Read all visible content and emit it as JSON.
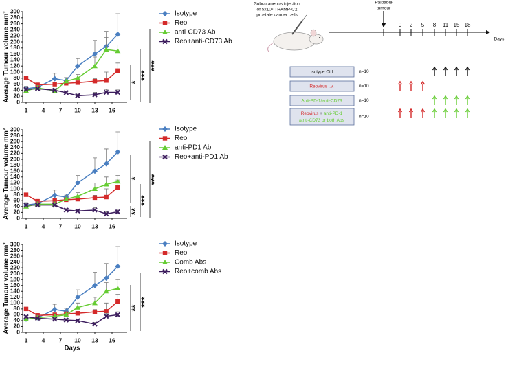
{
  "chart_data": [
    {
      "type": "line",
      "y_label": "Average Tumour volume mm³",
      "x": [
        1,
        3,
        6,
        8,
        10,
        13,
        15,
        17
      ],
      "xlim": [
        0,
        18
      ],
      "xticks": [
        1,
        4,
        7,
        10,
        13,
        16
      ],
      "ylim": [
        0,
        300
      ],
      "yticks": [
        0,
        20,
        40,
        60,
        80,
        100,
        120,
        140,
        160,
        180,
        200,
        220,
        240,
        260,
        280,
        300
      ],
      "series": [
        {
          "name": "Isotype",
          "color": "#4a7fc1",
          "values": [
            45,
            50,
            78,
            72,
            120,
            160,
            185,
            225
          ],
          "errors": [
            8,
            8,
            18,
            10,
            25,
            45,
            50,
            68
          ]
        },
        {
          "name": "Reo",
          "color": "#d42a2a",
          "values": [
            80,
            58,
            60,
            63,
            65,
            70,
            72,
            105
          ],
          "errors": [
            6,
            5,
            5,
            5,
            6,
            8,
            28,
            25
          ]
        },
        {
          "name": "anti-CD73 Ab",
          "color": "#66cc33",
          "values": [
            38,
            48,
            38,
            70,
            80,
            120,
            175,
            170
          ],
          "errors": [
            5,
            8,
            5,
            12,
            12,
            30,
            40,
            20
          ]
        },
        {
          "name": "Reo+anti-CD73 Ab",
          "color": "#3d1e5e",
          "values": [
            43,
            45,
            40,
            32,
            22,
            25,
            33,
            33
          ],
          "errors": [
            5,
            5,
            5,
            5,
            5,
            8,
            10,
            8
          ]
        }
      ],
      "annotations": [
        "*",
        "***",
        "***"
      ]
    },
    {
      "type": "line",
      "y_label": "Average Tumour volume mm³",
      "x": [
        1,
        3,
        6,
        8,
        10,
        13,
        15,
        17
      ],
      "xlim": [
        0,
        18
      ],
      "xticks": [
        1,
        4,
        7,
        10,
        13,
        16
      ],
      "ylim": [
        0,
        300
      ],
      "yticks": [
        0,
        20,
        40,
        60,
        80,
        100,
        120,
        140,
        160,
        180,
        200,
        220,
        240,
        260,
        280,
        300
      ],
      "series": [
        {
          "name": "Isotype",
          "color": "#4a7fc1",
          "values": [
            45,
            50,
            78,
            72,
            120,
            160,
            185,
            225
          ],
          "errors": [
            8,
            8,
            18,
            10,
            25,
            45,
            50,
            68
          ]
        },
        {
          "name": "Reo",
          "color": "#d42a2a",
          "values": [
            80,
            58,
            60,
            63,
            65,
            70,
            72,
            105
          ],
          "errors": [
            6,
            5,
            5,
            5,
            6,
            8,
            28,
            25
          ]
        },
        {
          "name": "anti-PD1 Ab",
          "color": "#66cc33",
          "values": [
            40,
            48,
            48,
            65,
            75,
            100,
            115,
            125
          ],
          "errors": [
            5,
            8,
            8,
            12,
            12,
            20,
            25,
            20
          ]
        },
        {
          "name": "Reo+anti-PD1 Ab",
          "color": "#3d1e5e",
          "values": [
            45,
            45,
            45,
            28,
            25,
            28,
            15,
            22
          ],
          "errors": [
            5,
            5,
            5,
            5,
            5,
            8,
            8,
            6
          ]
        }
      ],
      "annotations": [
        "*",
        "**",
        "***",
        "***"
      ]
    },
    {
      "type": "line",
      "y_label": "Average Tumour volume mm³",
      "x_label": "Days",
      "x": [
        1,
        3,
        6,
        8,
        10,
        13,
        15,
        17
      ],
      "xlim": [
        0,
        18
      ],
      "xticks": [
        1,
        4,
        7,
        10,
        13,
        16
      ],
      "ylim": [
        0,
        300
      ],
      "yticks": [
        0,
        20,
        40,
        60,
        80,
        100,
        120,
        140,
        160,
        180,
        200,
        220,
        240,
        260,
        280,
        300
      ],
      "series": [
        {
          "name": "Isotype",
          "color": "#4a7fc1",
          "values": [
            45,
            50,
            78,
            72,
            120,
            160,
            185,
            225
          ],
          "errors": [
            8,
            8,
            18,
            10,
            25,
            45,
            50,
            68
          ]
        },
        {
          "name": "Reo",
          "color": "#d42a2a",
          "values": [
            80,
            58,
            60,
            63,
            65,
            70,
            72,
            105
          ],
          "errors": [
            6,
            5,
            5,
            5,
            6,
            8,
            28,
            25
          ]
        },
        {
          "name": "Comb Abs",
          "color": "#66cc33",
          "values": [
            45,
            50,
            55,
            60,
            85,
            100,
            140,
            150
          ],
          "errors": [
            5,
            8,
            8,
            12,
            15,
            20,
            30,
            30
          ]
        },
        {
          "name": "Reo+comb Abs",
          "color": "#3d1e5e",
          "values": [
            53,
            48,
            45,
            42,
            40,
            28,
            55,
            60
          ],
          "errors": [
            5,
            5,
            5,
            5,
            5,
            6,
            10,
            10
          ]
        }
      ],
      "annotations": [
        "**",
        "***"
      ]
    }
  ],
  "diagram": {
    "injection": [
      "Subcutaneous injection",
      "of 5x10⁶ TRAMP-C2",
      "prostate cancer cells"
    ],
    "palpable": [
      "Palpable",
      "tumour"
    ],
    "timeline": [
      0,
      2,
      5,
      8,
      11,
      15,
      18
    ],
    "days_label": "Days",
    "groups": [
      {
        "parts": [
          "Isotype Ctrl"
        ],
        "n": "n=10"
      },
      {
        "parts": [
          "Reovirus i.v."
        ],
        "n": "n=10"
      },
      {
        "parts": [
          "Anti-PD-1/anti-CD73"
        ],
        "n": "n=10"
      },
      {
        "parts": [
          "Reovirus",
          " + ",
          "anti-PD-1",
          "/anti-CD73 or both Abs"
        ],
        "n": "n=10"
      }
    ]
  }
}
